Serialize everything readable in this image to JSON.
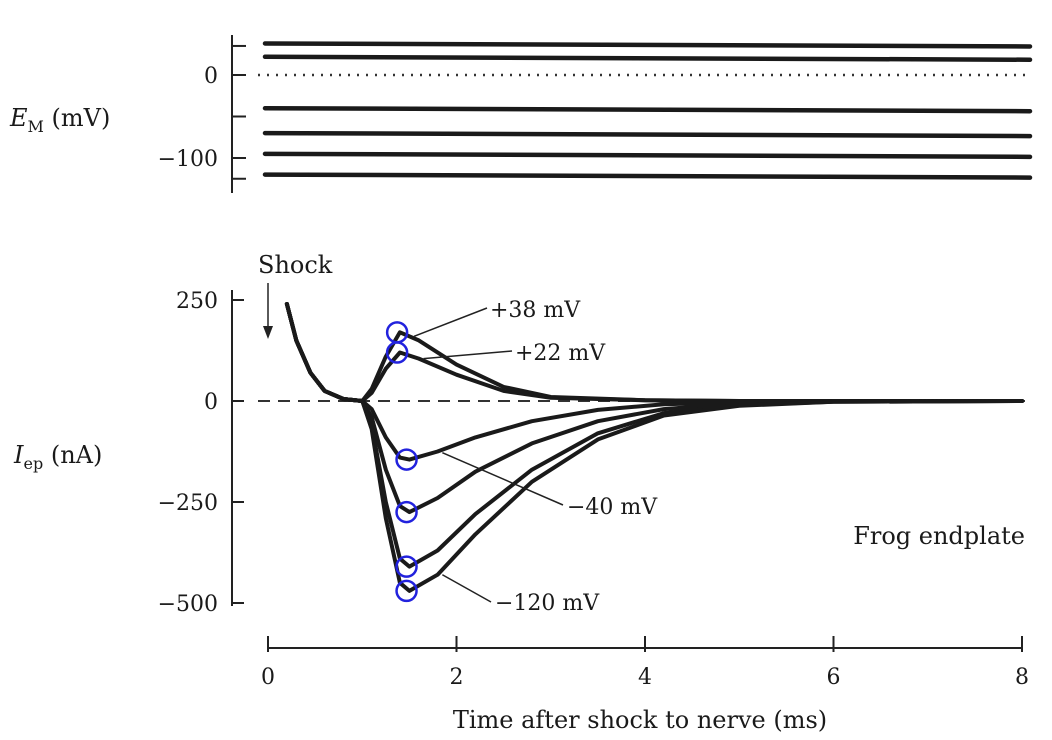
{
  "chart_data": [
    {
      "type": "line",
      "ylabel_symbol": "E",
      "ylabel_subscript": "M",
      "ylabel_unit": " (mV)",
      "y_ticks": [
        0,
        -100
      ],
      "y_tick_labels": [
        "0",
        "−100"
      ],
      "ylim": [
        -130,
        40
      ],
      "xlim": [
        0,
        8
      ],
      "zero_line": "dotted",
      "series": [
        {
          "x": [
            0,
            8
          ],
          "values": [
            38,
            38
          ]
        },
        {
          "x": [
            0,
            8
          ],
          "values": [
            22,
            22
          ]
        },
        {
          "x": [
            0,
            8
          ],
          "values": [
            -40,
            -40
          ]
        },
        {
          "x": [
            0,
            8
          ],
          "values": [
            -70,
            -70
          ]
        },
        {
          "x": [
            0,
            8
          ],
          "values": [
            -95,
            -95
          ]
        },
        {
          "x": [
            0,
            8
          ],
          "values": [
            -120,
            -120
          ]
        }
      ]
    },
    {
      "type": "line",
      "ylabel_symbol": "I",
      "ylabel_subscript": "ep",
      "ylabel_unit": " (nA)",
      "xlabel": "Time after shock to nerve (ms)",
      "x_ticks": [
        0,
        2,
        4,
        6,
        8
      ],
      "x_tick_labels": [
        "0",
        "2",
        "4",
        "6",
        "8"
      ],
      "y_ticks": [
        250,
        0,
        -250,
        -500
      ],
      "y_tick_labels": [
        "250",
        "0",
        "−250",
        "−500"
      ],
      "xlim": [
        0,
        8
      ],
      "ylim": [
        -500,
        250
      ],
      "zero_line": "dashed",
      "annotation_text": "Frog endplate",
      "shock_label": "Shock",
      "shock_x": 0,
      "series": [
        {
          "name": "+38 mV",
          "x": [
            0.2,
            0.3,
            0.45,
            0.6,
            0.8,
            1.0,
            1.1,
            1.25,
            1.4,
            1.6,
            2.0,
            2.5,
            3.0,
            4.0,
            5.0,
            6.0,
            8.0
          ],
          "values": [
            240,
            150,
            70,
            25,
            5,
            0,
            30,
            110,
            170,
            150,
            90,
            35,
            10,
            2,
            0,
            0,
            0
          ]
        },
        {
          "name": "+22 mV",
          "x": [
            0.2,
            0.3,
            0.45,
            0.6,
            0.8,
            1.0,
            1.1,
            1.25,
            1.4,
            1.6,
            2.0,
            2.5,
            3.0,
            4.0,
            5.0,
            6.0,
            8.0
          ],
          "values": [
            240,
            150,
            70,
            25,
            5,
            0,
            20,
            80,
            120,
            105,
            65,
            25,
            8,
            2,
            0,
            0,
            0
          ]
        },
        {
          "name": "−40 mV",
          "x": [
            0.2,
            0.3,
            0.45,
            0.6,
            0.8,
            1.0,
            1.1,
            1.25,
            1.4,
            1.5,
            1.8,
            2.2,
            2.8,
            3.5,
            4.2,
            5.0,
            6.0,
            8.0
          ],
          "values": [
            240,
            150,
            70,
            25,
            5,
            0,
            -20,
            -90,
            -140,
            -145,
            -125,
            -90,
            -50,
            -22,
            -8,
            -3,
            0,
            0
          ]
        },
        {
          "name": "",
          "x": [
            0.2,
            0.3,
            0.45,
            0.6,
            0.8,
            1.0,
            1.1,
            1.25,
            1.4,
            1.5,
            1.8,
            2.2,
            2.8,
            3.5,
            4.2,
            5.0,
            6.0,
            8.0
          ],
          "values": [
            240,
            150,
            70,
            25,
            5,
            0,
            -40,
            -170,
            -260,
            -275,
            -240,
            -175,
            -105,
            -50,
            -20,
            -6,
            -1,
            0
          ]
        },
        {
          "name": "",
          "x": [
            0.2,
            0.3,
            0.45,
            0.6,
            0.8,
            1.0,
            1.1,
            1.25,
            1.4,
            1.5,
            1.8,
            2.2,
            2.8,
            3.5,
            4.2,
            5.0,
            6.0,
            8.0
          ],
          "values": [
            240,
            150,
            70,
            25,
            5,
            0,
            -60,
            -250,
            -390,
            -410,
            -370,
            -280,
            -170,
            -80,
            -30,
            -10,
            -2,
            0
          ]
        },
        {
          "name": "−120 mV",
          "x": [
            0.2,
            0.3,
            0.45,
            0.6,
            0.8,
            1.0,
            1.1,
            1.25,
            1.4,
            1.5,
            1.8,
            2.2,
            2.8,
            3.5,
            4.2,
            5.0,
            6.0,
            8.0
          ],
          "values": [
            240,
            150,
            70,
            25,
            5,
            0,
            -70,
            -290,
            -450,
            -470,
            -430,
            -330,
            -200,
            -95,
            -36,
            -12,
            -2,
            0
          ]
        }
      ],
      "peak_markers": [
        {
          "x": 1.37,
          "y": 170,
          "color": "#2222dd"
        },
        {
          "x": 1.37,
          "y": 120,
          "color": "#2222dd"
        },
        {
          "x": 1.47,
          "y": -145,
          "color": "#2222dd"
        },
        {
          "x": 1.47,
          "y": -275,
          "color": "#2222dd"
        },
        {
          "x": 1.47,
          "y": -410,
          "color": "#2222dd"
        },
        {
          "x": 1.47,
          "y": -470,
          "color": "#2222dd"
        }
      ]
    }
  ]
}
